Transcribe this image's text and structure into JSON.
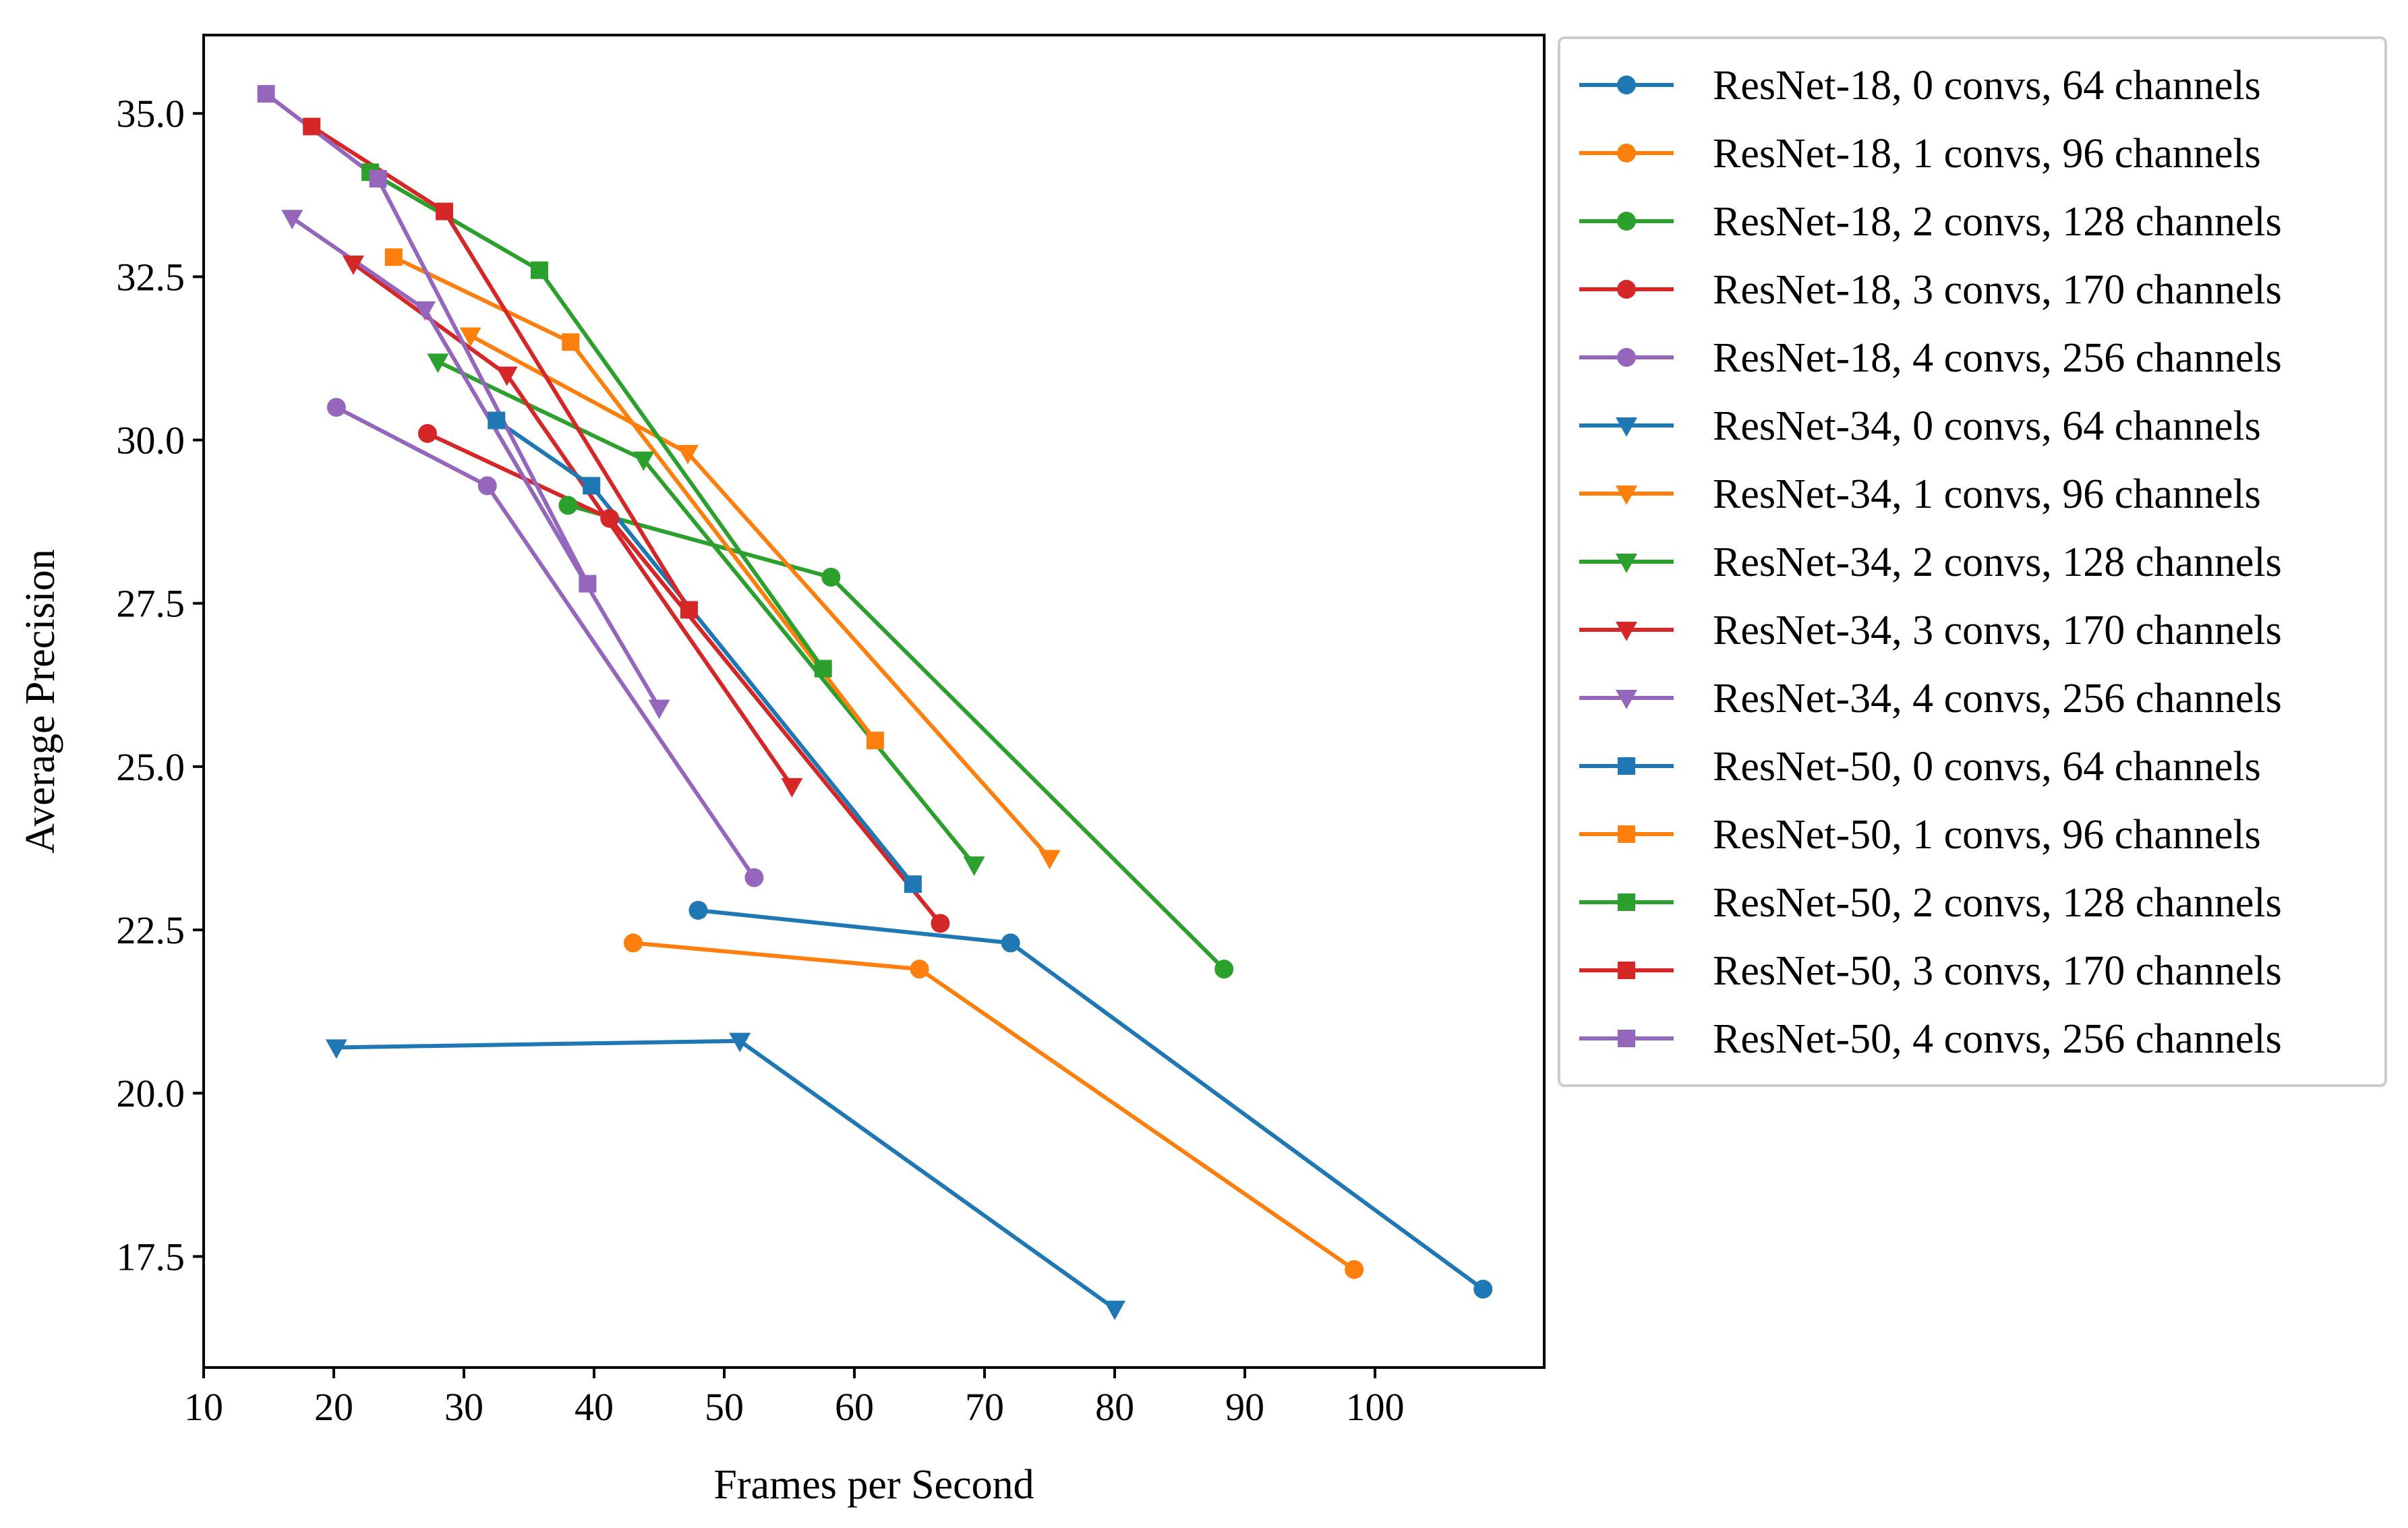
{
  "chart_data": {
    "type": "line",
    "title": "",
    "xlabel": "Frames per Second",
    "ylabel": "Average Precision",
    "xlim": [
      10,
      113
    ],
    "ylim": [
      15.8,
      36.2
    ],
    "xticks": [
      10,
      20,
      30,
      40,
      50,
      60,
      70,
      80,
      90,
      100
    ],
    "yticks": [
      17.5,
      20.0,
      22.5,
      25.0,
      27.5,
      30.0,
      32.5,
      35.0
    ],
    "ytick_labels": [
      "17.5",
      "20.0",
      "22.5",
      "25.0",
      "27.5",
      "30.0",
      "32.5",
      "35.0"
    ],
    "grid": false,
    "legend_position": "outside-right",
    "series": [
      {
        "name": "ResNet-18, 0 convs, 64 channels",
        "color": "#1f77b4",
        "marker": "circle",
        "x": [
          48,
          72,
          108.3
        ],
        "y": [
          22.8,
          22.3,
          17.0
        ]
      },
      {
        "name": "ResNet-18, 1 convs, 96 channels",
        "color": "#ff7f0e",
        "marker": "circle",
        "x": [
          43,
          65,
          98.4
        ],
        "y": [
          22.3,
          21.9,
          17.3
        ]
      },
      {
        "name": "ResNet-18, 2 convs, 128 channels",
        "color": "#2ca02c",
        "marker": "circle",
        "x": [
          38,
          58.2,
          88.4
        ],
        "y": [
          29.0,
          27.9,
          21.9
        ]
      },
      {
        "name": "ResNet-18, 3 convs, 170 channels",
        "color": "#d62728",
        "marker": "circle",
        "x": [
          27.2,
          41.2,
          66.6
        ],
        "y": [
          30.1,
          28.8,
          22.6
        ]
      },
      {
        "name": "ResNet-18, 4 convs, 256 channels",
        "color": "#9467bd",
        "marker": "circle",
        "x": [
          20.2,
          31.8,
          52.3
        ],
        "y": [
          30.5,
          29.3,
          23.3
        ]
      },
      {
        "name": "ResNet-34, 0 convs, 64 channels",
        "color": "#1f77b4",
        "marker": "triangle-down",
        "x": [
          20.2,
          51.2,
          80
        ],
        "y": [
          20.7,
          20.8,
          16.7
        ]
      },
      {
        "name": "ResNet-34, 1 convs, 96 channels",
        "color": "#ff7f0e",
        "marker": "triangle-down",
        "x": [
          30.5,
          47.2,
          75
        ],
        "y": [
          31.6,
          29.8,
          23.6
        ]
      },
      {
        "name": "ResNet-34, 2 convs, 128 channels",
        "color": "#2ca02c",
        "marker": "triangle-down",
        "x": [
          28,
          43.8,
          69.2
        ],
        "y": [
          31.2,
          29.7,
          23.5
        ]
      },
      {
        "name": "ResNet-34, 3 convs, 170 channels",
        "color": "#d62728",
        "marker": "triangle-down",
        "x": [
          21.5,
          33.3,
          55.2
        ],
        "y": [
          32.7,
          31.0,
          24.7
        ]
      },
      {
        "name": "ResNet-34, 4 convs, 256 channels",
        "color": "#9467bd",
        "marker": "triangle-down",
        "x": [
          16.8,
          27.0,
          45.0
        ],
        "y": [
          33.4,
          32.0,
          25.9
        ]
      },
      {
        "name": "ResNet-50, 0 convs, 64 channels",
        "color": "#1f77b4",
        "marker": "square",
        "x": [
          32.5,
          39.8,
          64.5
        ],
        "y": [
          30.3,
          29.3,
          23.2
        ]
      },
      {
        "name": "ResNet-50, 1 convs, 96 channels",
        "color": "#ff7f0e",
        "marker": "square",
        "x": [
          24.6,
          38.2,
          61.6
        ],
        "y": [
          32.8,
          31.5,
          25.4
        ]
      },
      {
        "name": "ResNet-50, 2 convs, 128 channels",
        "color": "#2ca02c",
        "marker": "square",
        "x": [
          22.8,
          35.8,
          57.6
        ],
        "y": [
          34.1,
          32.6,
          26.5
        ]
      },
      {
        "name": "ResNet-50, 3 convs, 170 channels",
        "color": "#d62728",
        "marker": "square",
        "x": [
          18.3,
          28.5,
          47.3
        ],
        "y": [
          34.8,
          33.5,
          27.4
        ]
      },
      {
        "name": "ResNet-50, 4 convs, 256 channels",
        "color": "#9467bd",
        "marker": "square",
        "x": [
          14.8,
          23.4,
          39.5
        ],
        "y": [
          35.3,
          34.0,
          27.8
        ]
      }
    ]
  }
}
